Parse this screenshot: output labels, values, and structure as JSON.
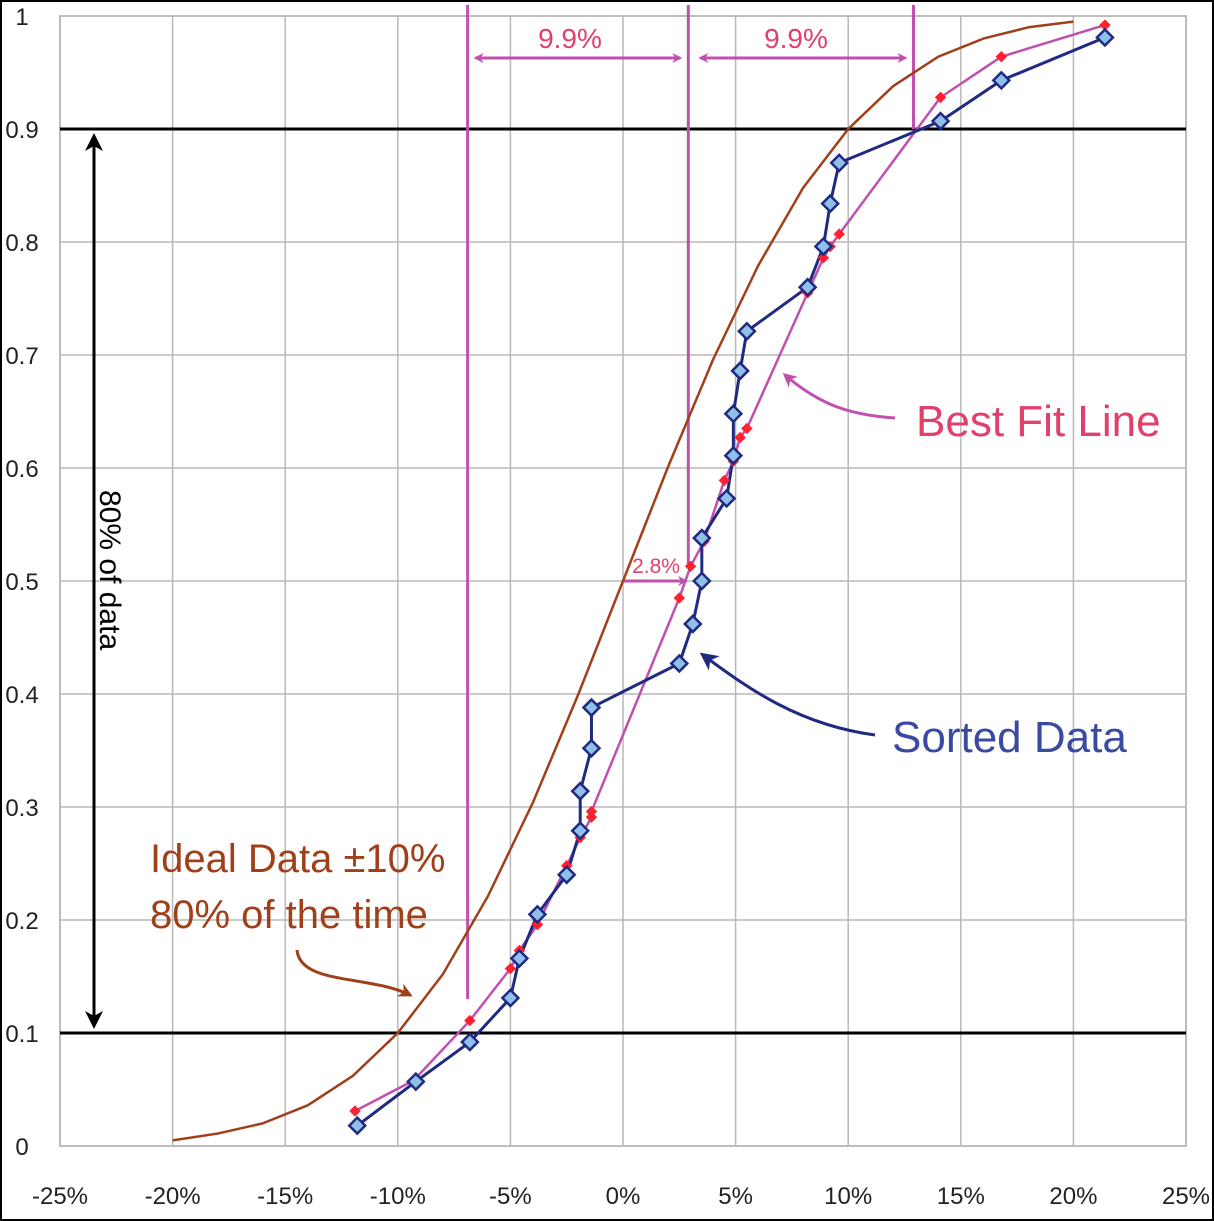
{
  "chart_data": {
    "type": "line",
    "title": "",
    "xlabel": "",
    "ylabel": "",
    "xlim": [
      -25,
      25
    ],
    "ylim": [
      0,
      1
    ],
    "grid": true,
    "x_tick_labels": [
      "-25%",
      "-20%",
      "-15%",
      "-10%",
      "-5%",
      "0%",
      "5%",
      "10%",
      "15%",
      "20%",
      "25%"
    ],
    "x_ticks": [
      -25,
      -20,
      -15,
      -10,
      -5,
      0,
      5,
      10,
      15,
      20,
      25
    ],
    "y_tick_labels": [
      "0",
      "0.1",
      "0.2",
      "0.3",
      "0.4",
      "0.5",
      "0.6",
      "0.7",
      "0.8",
      "0.9",
      "1"
    ],
    "y_ticks": [
      0,
      0.1,
      0.2,
      0.3,
      0.4,
      0.5,
      0.6,
      0.7,
      0.8,
      0.9,
      1
    ],
    "series": [
      {
        "name": "Ideal Data ±10% 80% of the time",
        "color": "#a0401a",
        "marker": "none",
        "points": [
          [
            -20,
            0.005
          ],
          [
            -18,
            0.011
          ],
          [
            -16,
            0.02
          ],
          [
            -14,
            0.036
          ],
          [
            -12,
            0.062
          ],
          [
            -10,
            0.1
          ],
          [
            -8,
            0.152
          ],
          [
            -6,
            0.221
          ],
          [
            -4,
            0.304
          ],
          [
            -2,
            0.399
          ],
          [
            0,
            0.5
          ],
          [
            2,
            0.601
          ],
          [
            4,
            0.696
          ],
          [
            6,
            0.779
          ],
          [
            8,
            0.848
          ],
          [
            10,
            0.9
          ],
          [
            12,
            0.938
          ],
          [
            14,
            0.964
          ],
          [
            16,
            0.98
          ],
          [
            18,
            0.99
          ],
          [
            20,
            0.995
          ]
        ]
      },
      {
        "name": "Best Fit Line",
        "color": "#c050b0",
        "marker_color": "#ff2030",
        "marker": "small-diamond",
        "points": [
          [
            -11.9,
            0.031
          ],
          [
            -9.3,
            0.058
          ],
          [
            -6.8,
            0.111
          ],
          [
            -5.0,
            0.157
          ],
          [
            -4.6,
            0.173
          ],
          [
            -3.8,
            0.196
          ],
          [
            -2.5,
            0.248
          ],
          [
            -1.9,
            0.273
          ],
          [
            -1.4,
            0.291
          ],
          [
            -1.4,
            0.296
          ],
          [
            2.5,
            0.485
          ],
          [
            3.0,
            0.513
          ],
          [
            3.6,
            0.535
          ],
          [
            4.5,
            0.589
          ],
          [
            4.9,
            0.606
          ],
          [
            5.2,
            0.627
          ],
          [
            5.5,
            0.635
          ],
          [
            8.2,
            0.755
          ],
          [
            8.9,
            0.786
          ],
          [
            9.2,
            0.796
          ],
          [
            9.6,
            0.807
          ],
          [
            14.1,
            0.928
          ],
          [
            16.8,
            0.964
          ],
          [
            21.4,
            0.992
          ]
        ]
      },
      {
        "name": "Sorted Data",
        "color": "#202a80",
        "marker_color": "#8ec0ea",
        "marker": "diamond",
        "points": [
          [
            -11.8,
            0.018
          ],
          [
            -9.2,
            0.057
          ],
          [
            -6.8,
            0.092
          ],
          [
            -5.0,
            0.131
          ],
          [
            -4.6,
            0.166
          ],
          [
            -3.8,
            0.205
          ],
          [
            -2.5,
            0.24
          ],
          [
            -1.9,
            0.279
          ],
          [
            -1.9,
            0.314
          ],
          [
            -1.4,
            0.352
          ],
          [
            -1.4,
            0.388
          ],
          [
            2.5,
            0.427
          ],
          [
            3.1,
            0.462
          ],
          [
            3.5,
            0.5
          ],
          [
            3.5,
            0.538
          ],
          [
            4.6,
            0.573
          ],
          [
            4.9,
            0.611
          ],
          [
            4.9,
            0.648
          ],
          [
            5.2,
            0.686
          ],
          [
            5.5,
            0.721
          ],
          [
            8.2,
            0.76
          ],
          [
            8.9,
            0.796
          ],
          [
            9.2,
            0.834
          ],
          [
            9.6,
            0.87
          ],
          [
            14.1,
            0.907
          ],
          [
            16.8,
            0.943
          ],
          [
            21.4,
            0.981
          ]
        ]
      }
    ],
    "reference_lines": {
      "horizontal": [
        0.1,
        0.9
      ],
      "vertical": [
        -6.9,
        2.9,
        12.9
      ]
    },
    "annotations": {
      "span_left": "9.9%",
      "span_right": "9.9%",
      "offset": "2.8%",
      "range_label": "80% of data",
      "ideal_label_line1": "Ideal Data ±10%",
      "ideal_label_line2": "80% of the time",
      "best_fit_label": "Best Fit Line",
      "sorted_label": "Sorted Data"
    },
    "colors": {
      "annotation_pink": "#c050b0",
      "label_red": "#e0406a",
      "ideal_brown": "#a0401a",
      "sorted_blue": "#3a4aa0"
    }
  }
}
